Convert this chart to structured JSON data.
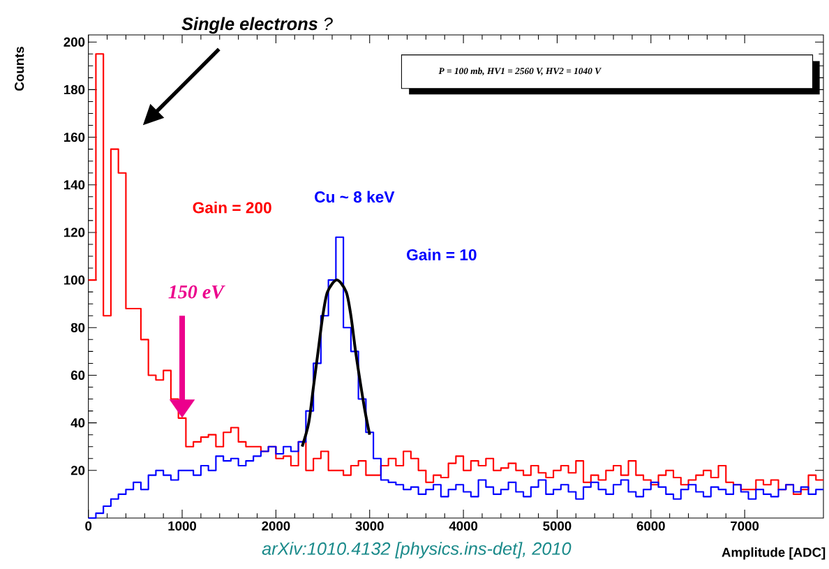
{
  "chart_data": {
    "type": "histogram",
    "xlabel": "Amplitude [ADC]",
    "ylabel": "Counts",
    "bins": [
      0,
      80,
      160,
      240,
      320,
      400,
      480,
      560,
      640,
      720,
      800,
      880,
      960,
      1040,
      1120,
      1200,
      1280,
      1360,
      1440,
      1520,
      1600,
      1680,
      1760,
      1840,
      1920,
      2000,
      2080,
      2160,
      2240,
      2320,
      2400,
      2480,
      2560,
      2640,
      2720,
      2800,
      2880,
      2960,
      3040,
      3120,
      3200,
      3280,
      3360,
      3440,
      3520,
      3600,
      3680,
      3760,
      3840,
      3920,
      4000,
      4080,
      4160,
      4240,
      4320,
      4400,
      4480,
      4560,
      4640,
      4720,
      4800,
      4880,
      4960,
      5040,
      5120,
      5200,
      5280,
      5360,
      5440,
      5520,
      5600,
      5680,
      5760,
      5840,
      5920,
      6000,
      6080,
      6160,
      6240,
      6320,
      6400,
      6480,
      6560,
      6640,
      6720,
      6800,
      6880,
      6960,
      7040,
      7120,
      7200,
      7280,
      7360,
      7440,
      7520,
      7600,
      7680,
      7760,
      7840
    ],
    "series": [
      {
        "name": "Gain = 200",
        "color": "#ff0000",
        "values": [
          100,
          195,
          85,
          155,
          145,
          88,
          88,
          75,
          60,
          58,
          62,
          50,
          42,
          30,
          32,
          34,
          35,
          30,
          36,
          38,
          32,
          30,
          30,
          28,
          30,
          25,
          26,
          22,
          32,
          20,
          25,
          28,
          20,
          20,
          18,
          22,
          24,
          18,
          18,
          22,
          25,
          22,
          28,
          25,
          20,
          15,
          18,
          17,
          23,
          26,
          20,
          24,
          22,
          25,
          20,
          21,
          23,
          20,
          18,
          22,
          19,
          17,
          20,
          22,
          19,
          24,
          15,
          18,
          16,
          20,
          22,
          18,
          24,
          18,
          16,
          14,
          18,
          20,
          17,
          14,
          16,
          18,
          20,
          17,
          22,
          15,
          14,
          12,
          12,
          16,
          14,
          16,
          12,
          14,
          10,
          12,
          18,
          16
        ]
      },
      {
        "name": "Gain = 10",
        "color": "#0000ff",
        "values": [
          0,
          2,
          5,
          8,
          10,
          12,
          15,
          12,
          18,
          20,
          18,
          16,
          20,
          20,
          18,
          22,
          20,
          26,
          24,
          25,
          22,
          24,
          26,
          28,
          30,
          27,
          30,
          28,
          32,
          45,
          65,
          85,
          100,
          118,
          80,
          70,
          50,
          36,
          25,
          16,
          15,
          14,
          12,
          13,
          10,
          12,
          14,
          9,
          12,
          14,
          11,
          9,
          16,
          13,
          10,
          12,
          15,
          11,
          9,
          13,
          16,
          10,
          12,
          14,
          11,
          8,
          13,
          15,
          12,
          10,
          14,
          16,
          11,
          9,
          12,
          15,
          13,
          10,
          8,
          12,
          14,
          11,
          9,
          13,
          12,
          10,
          14,
          11,
          8,
          12,
          10,
          9,
          12,
          14,
          11,
          13,
          10,
          12
        ]
      },
      {
        "type": "line",
        "color": "#000000",
        "x": [
          2280,
          2350,
          2400,
          2450,
          2500,
          2550,
          2650,
          2750,
          2800,
          2850,
          2900,
          2950,
          3000
        ],
        "values": [
          30,
          40,
          55,
          70,
          85,
          95,
          100,
          95,
          85,
          70,
          57,
          45,
          35
        ]
      }
    ],
    "xlim": [
      0,
      7840
    ],
    "ylim": [
      0,
      203
    ],
    "xticks": [
      0,
      1000,
      2000,
      3000,
      4000,
      5000,
      6000,
      7000
    ],
    "yticks": [
      20,
      40,
      60,
      80,
      100,
      120,
      140,
      160,
      180,
      200
    ],
    "annotations": [
      "**Single electrons** ?",
      "Cu ~ 8 keV",
      "150 eV",
      "P = 100 mb, HV1 = 2560 V, HV2 = 1040 V",
      "arXiv:1010.4132 [physics.ins-det], 2010"
    ],
    "grid": false
  }
}
